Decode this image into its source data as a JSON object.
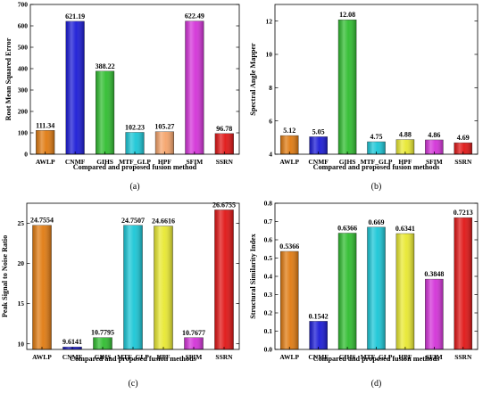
{
  "colors": {
    "AWLP": "#e07a10",
    "CNMF": "#1a1ad6",
    "GIHS": "#2fbd2f",
    "MTF_GLP": "#19c6d6",
    "HPF_a": "#f5a36a",
    "HPF": "#e8e830",
    "SFIM": "#d332d8",
    "SSRN": "#e01414"
  },
  "chart_data": [
    {
      "panel": "(a)",
      "type": "bar",
      "categories": [
        "AWLP",
        "CNMF",
        "GIHS",
        "MTF_GLP",
        "HPF",
        "SFIM",
        "SSRN"
      ],
      "values": [
        111.34,
        621.19,
        388.22,
        102.23,
        105.27,
        622.49,
        96.78
      ],
      "value_labels": [
        "111.34",
        "621.19",
        "388.22",
        "102.23",
        "105.27",
        "622.49",
        "96.78"
      ],
      "bar_colors": [
        "AWLP",
        "CNMF",
        "GIHS",
        "MTF_GLP",
        "HPF_a",
        "SFIM",
        "SSRN"
      ],
      "xlabel": "Compared and proposed fusion method",
      "ylabel": "Root Mean Squared Error",
      "ylim": [
        0,
        700
      ],
      "yticks": [
        0,
        100,
        200,
        300,
        400,
        500,
        600,
        700
      ],
      "ytick_labels": [
        "0",
        "100",
        "200",
        "300",
        "400",
        "500",
        "600",
        "700"
      ],
      "grid": false
    },
    {
      "panel": "(b)",
      "type": "bar",
      "categories": [
        "AWLP",
        "CNMF",
        "GIHS",
        "MTF_GLP",
        "HPF",
        "SFIM",
        "SSRN"
      ],
      "values": [
        5.12,
        5.05,
        12.08,
        4.75,
        4.88,
        4.86,
        4.69
      ],
      "value_labels": [
        "5.12",
        "5.05",
        "12.08",
        "4.75",
        "4.88",
        "4.86",
        "4.69"
      ],
      "bar_colors": [
        "AWLP",
        "CNMF",
        "GIHS",
        "MTF_GLP",
        "HPF",
        "SFIM",
        "SSRN"
      ],
      "xlabel": "Compared and proposed fusion methods",
      "ylabel": "Spectral Angle Mapper",
      "ylim": [
        4,
        13
      ],
      "yticks": [
        4,
        6,
        8,
        10,
        12
      ],
      "ytick_labels": [
        "4",
        "6",
        "8",
        "10",
        "12"
      ],
      "grid": false
    },
    {
      "panel": "(c)",
      "type": "bar",
      "categories": [
        "AWLP",
        "CNMF",
        "GIHS",
        "MTF_GLP",
        "HPF",
        "SFIM",
        "SSRN"
      ],
      "values": [
        24.7554,
        9.6141,
        10.7795,
        24.7507,
        24.6616,
        10.7677,
        26.6755
      ],
      "value_labels": [
        "24.7554",
        "9.6141",
        "10.7795",
        "24.7507",
        "24.6616",
        "10.7677",
        "26.6755"
      ],
      "bar_colors": [
        "AWLP",
        "CNMF",
        "GIHS",
        "MTF_GLP",
        "HPF",
        "SFIM",
        "SSRN"
      ],
      "xlabel": "Compared and proposed fusion methods",
      "ylabel": "Peak Signal to Noise Ratio",
      "ylim": [
        9.3,
        27.5
      ],
      "yticks": [
        10,
        15,
        20,
        25
      ],
      "ytick_labels": [
        "10",
        "15",
        "20",
        "25"
      ],
      "grid": false
    },
    {
      "panel": "(d)",
      "type": "bar",
      "categories": [
        "AWLP",
        "CNMF",
        "GIHS",
        "MTF_GLP",
        "HPF",
        "SFIM",
        "SSRN"
      ],
      "values": [
        0.5366,
        0.1542,
        0.6366,
        0.669,
        0.6341,
        0.3848,
        0.7213
      ],
      "value_labels": [
        "0.5366",
        "0.1542",
        "0.6366",
        "0.669",
        "0.6341",
        "0.3848",
        "0.7213"
      ],
      "bar_colors": [
        "AWLP",
        "CNMF",
        "GIHS",
        "MTF_GLP",
        "HPF",
        "SFIM",
        "SSRN"
      ],
      "xlabel": "Compared and proposed fusion methods",
      "ylabel": "Structural Similarity Index",
      "ylim": [
        0,
        0.8
      ],
      "yticks": [
        0,
        0.1,
        0.2,
        0.3,
        0.4,
        0.5,
        0.6,
        0.7,
        0.8
      ],
      "ytick_labels": [
        "0.0",
        "0.1",
        "0.2",
        "0.3",
        "0.4",
        "0.5",
        "0.6",
        "0.7",
        "0.8"
      ],
      "grid": false
    }
  ]
}
